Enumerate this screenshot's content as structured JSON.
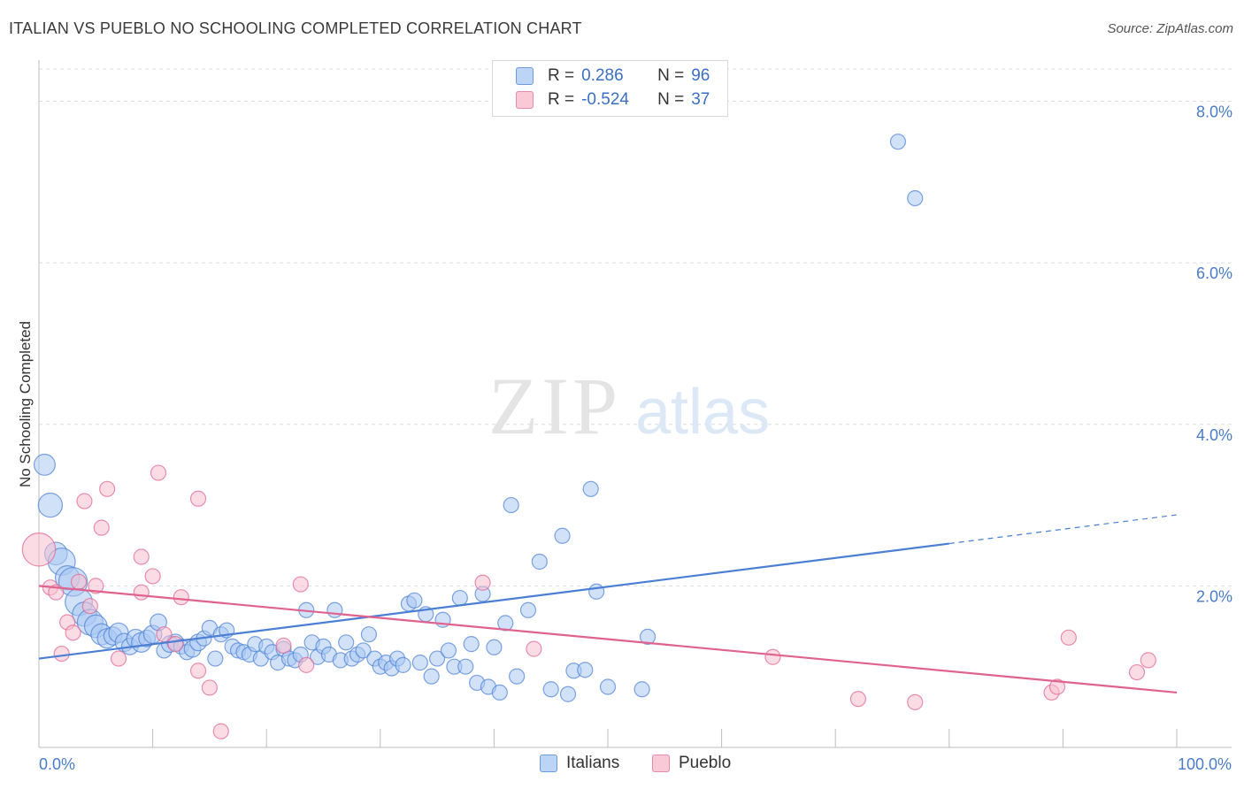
{
  "header": {
    "title": "ITALIAN VS PUEBLO NO SCHOOLING COMPLETED CORRELATION CHART",
    "source": "Source: ZipAtlas.com"
  },
  "watermark": {
    "zip": "ZIP",
    "atlas": "atlas"
  },
  "legend": {
    "rows": [
      {
        "r_label": "R =",
        "r_value": "0.286",
        "n_label": "N =",
        "n_value": "96",
        "color": "#9fc3f0"
      },
      {
        "r_label": "R =",
        "r_value": "-0.524",
        "n_label": "N =",
        "n_value": "37",
        "color": "#f5b0c5"
      }
    ]
  },
  "bottom_legend": [
    "Italians",
    "Pueblo"
  ],
  "chart_data": {
    "type": "scatter",
    "title": "ITALIAN VS PUEBLO NO SCHOOLING COMPLETED CORRELATION CHART",
    "ylabel": "No Schooling Completed",
    "xlabel": "",
    "xlim": [
      0,
      100
    ],
    "ylim": [
      0,
      8.4
    ],
    "y_ticks": [
      {
        "value": 2,
        "label": "2.0%"
      },
      {
        "value": 4,
        "label": "4.0%"
      },
      {
        "value": 6,
        "label": "6.0%"
      },
      {
        "value": 8,
        "label": "8.0%"
      }
    ],
    "x_tick_labels": [
      {
        "value": 0,
        "label": "0.0%"
      },
      {
        "value": 100,
        "label": "100.0%"
      }
    ],
    "grid": "horizontal dashed",
    "legend_position": "top-center",
    "series": [
      {
        "name": "Italians",
        "color": "#4a7fd4",
        "fill": "#a9c8f2",
        "trend": {
          "x0": 0,
          "y0": 1.1,
          "x1": 100,
          "y1": 2.88,
          "solid_until_x": 80
        },
        "points": [
          [
            0.5,
            3.5,
            1.4
          ],
          [
            1.0,
            3.0,
            1.6
          ],
          [
            1.5,
            2.4,
            1.5
          ],
          [
            2.0,
            2.3,
            1.8
          ],
          [
            2.5,
            2.1,
            1.6
          ],
          [
            3.0,
            2.05,
            1.9
          ],
          [
            3.5,
            1.8,
            1.8
          ],
          [
            4.0,
            1.65,
            1.6
          ],
          [
            4.5,
            1.55,
            1.7
          ],
          [
            5.0,
            1.5,
            1.5
          ],
          [
            5.5,
            1.4,
            1.4
          ],
          [
            6.0,
            1.35,
            1.3
          ],
          [
            6.5,
            1.38,
            1.2
          ],
          [
            7.0,
            1.42,
            1.3
          ],
          [
            7.5,
            1.3,
            1.2
          ],
          [
            8.0,
            1.25,
            1.1
          ],
          [
            8.5,
            1.35,
            1.2
          ],
          [
            9.0,
            1.3,
            1.3
          ],
          [
            9.5,
            1.35,
            1.1
          ],
          [
            10.0,
            1.4,
            1.2
          ],
          [
            10.5,
            1.55,
            1.1
          ],
          [
            11.0,
            1.2,
            1.0
          ],
          [
            11.5,
            1.28,
            1.1
          ],
          [
            12.0,
            1.3,
            1.1
          ],
          [
            12.5,
            1.25,
            1.0
          ],
          [
            13.0,
            1.18,
            1.0
          ],
          [
            13.5,
            1.22,
            1.1
          ],
          [
            14.0,
            1.3,
            1.1
          ],
          [
            14.5,
            1.35,
            1.0
          ],
          [
            15.0,
            1.48,
            1.0
          ],
          [
            15.5,
            1.1,
            1.0
          ],
          [
            16.0,
            1.4,
            1.0
          ],
          [
            16.5,
            1.45,
            1.0
          ],
          [
            17.0,
            1.25,
            1.0
          ],
          [
            17.5,
            1.2,
            1.0
          ],
          [
            18.0,
            1.18,
            1.0
          ],
          [
            18.5,
            1.15,
            1.0
          ],
          [
            19.0,
            1.28,
            1.0
          ],
          [
            19.5,
            1.1,
            1.0
          ],
          [
            20.0,
            1.25,
            1.0
          ],
          [
            20.5,
            1.18,
            1.0
          ],
          [
            21.0,
            1.05,
            1.0
          ],
          [
            21.5,
            1.22,
            1.0
          ],
          [
            22.0,
            1.1,
            1.0
          ],
          [
            22.5,
            1.08,
            1.0
          ],
          [
            23.0,
            1.15,
            1.0
          ],
          [
            23.5,
            1.7,
            1.0
          ],
          [
            24.0,
            1.3,
            1.0
          ],
          [
            24.5,
            1.12,
            1.0
          ],
          [
            25.0,
            1.25,
            1.0
          ],
          [
            25.5,
            1.15,
            1.0
          ],
          [
            26.0,
            1.7,
            1.0
          ],
          [
            26.5,
            1.08,
            1.0
          ],
          [
            27.0,
            1.3,
            1.0
          ],
          [
            27.5,
            1.1,
            1.0
          ],
          [
            28.0,
            1.15,
            1.0
          ],
          [
            28.5,
            1.2,
            1.0
          ],
          [
            29.0,
            1.4,
            1.0
          ],
          [
            29.5,
            1.1,
            1.0
          ],
          [
            30.0,
            1.0,
            1.0
          ],
          [
            30.5,
            1.05,
            1.0
          ],
          [
            31.0,
            0.98,
            1.0
          ],
          [
            31.5,
            1.1,
            1.0
          ],
          [
            32.0,
            1.02,
            1.0
          ],
          [
            32.5,
            1.78,
            1.0
          ],
          [
            33.0,
            1.82,
            1.0
          ],
          [
            33.5,
            1.05,
            1.0
          ],
          [
            34.0,
            1.65,
            1.0
          ],
          [
            34.5,
            0.88,
            1.0
          ],
          [
            35.0,
            1.1,
            1.0
          ],
          [
            35.5,
            1.58,
            1.0
          ],
          [
            36.0,
            1.2,
            1.0
          ],
          [
            36.5,
            1.0,
            1.0
          ],
          [
            37.0,
            1.85,
            1.0
          ],
          [
            37.5,
            1.0,
            1.0
          ],
          [
            38.0,
            1.28,
            1.0
          ],
          [
            38.5,
            0.8,
            1.0
          ],
          [
            39.0,
            1.9,
            1.0
          ],
          [
            39.5,
            0.75,
            1.0
          ],
          [
            40.0,
            1.24,
            1.0
          ],
          [
            40.5,
            0.68,
            1.0
          ],
          [
            41.0,
            1.54,
            1.0
          ],
          [
            42.0,
            0.88,
            1.0
          ],
          [
            43.0,
            1.7,
            1.0
          ],
          [
            44.0,
            2.3,
            1.0
          ],
          [
            45.0,
            0.72,
            1.0
          ],
          [
            46.0,
            2.62,
            1.0
          ],
          [
            46.5,
            0.66,
            1.0
          ],
          [
            47.0,
            0.95,
            1.0
          ],
          [
            48.0,
            0.96,
            1.0
          ],
          [
            48.5,
            3.2,
            1.0
          ],
          [
            49.0,
            1.93,
            1.0
          ],
          [
            50.0,
            0.75,
            1.0
          ],
          [
            53.0,
            0.72,
            1.0
          ],
          [
            53.5,
            1.37,
            1.0
          ],
          [
            75.5,
            7.5,
            1.0
          ],
          [
            77.0,
            6.8,
            1.0
          ],
          [
            41.5,
            3.0,
            1.0
          ]
        ]
      },
      {
        "name": "Pueblo",
        "color": "#e0628e",
        "fill": "#f7bfd0",
        "trend": {
          "x0": 0,
          "y0": 2.0,
          "x1": 100,
          "y1": 0.68
        },
        "points": [
          [
            0.0,
            2.45,
            2.2
          ],
          [
            1.0,
            1.98,
            1.0
          ],
          [
            1.5,
            1.92,
            1.0
          ],
          [
            2.0,
            1.16,
            1.0
          ],
          [
            2.5,
            1.55,
            1.0
          ],
          [
            3.0,
            1.42,
            1.0
          ],
          [
            3.5,
            2.05,
            1.0
          ],
          [
            4.0,
            3.05,
            1.0
          ],
          [
            4.5,
            1.75,
            1.0
          ],
          [
            5.0,
            2.0,
            1.0
          ],
          [
            5.5,
            2.72,
            1.0
          ],
          [
            6.0,
            3.2,
            1.0
          ],
          [
            7.0,
            1.1,
            1.0
          ],
          [
            9.0,
            2.36,
            1.0
          ],
          [
            9.0,
            1.92,
            1.0
          ],
          [
            10.0,
            2.12,
            1.0
          ],
          [
            10.5,
            3.4,
            1.0
          ],
          [
            11.0,
            1.4,
            1.0
          ],
          [
            12.0,
            1.28,
            1.0
          ],
          [
            12.5,
            1.86,
            1.0
          ],
          [
            14.0,
            3.08,
            1.0
          ],
          [
            14.0,
            0.95,
            1.0
          ],
          [
            15.0,
            0.74,
            1.0
          ],
          [
            16.0,
            0.2,
            1.0
          ],
          [
            21.5,
            1.26,
            1.0
          ],
          [
            23.0,
            2.02,
            1.0
          ],
          [
            23.5,
            1.02,
            1.0
          ],
          [
            39.0,
            2.04,
            1.0
          ],
          [
            43.5,
            1.22,
            1.0
          ],
          [
            64.5,
            1.12,
            1.0
          ],
          [
            72.0,
            0.6,
            1.0
          ],
          [
            77.0,
            0.56,
            1.0
          ],
          [
            89.0,
            0.68,
            1.0
          ],
          [
            89.5,
            0.75,
            1.0
          ],
          [
            90.5,
            1.36,
            1.0
          ],
          [
            96.5,
            0.93,
            1.0
          ],
          [
            97.5,
            1.08,
            1.0
          ]
        ]
      }
    ]
  }
}
